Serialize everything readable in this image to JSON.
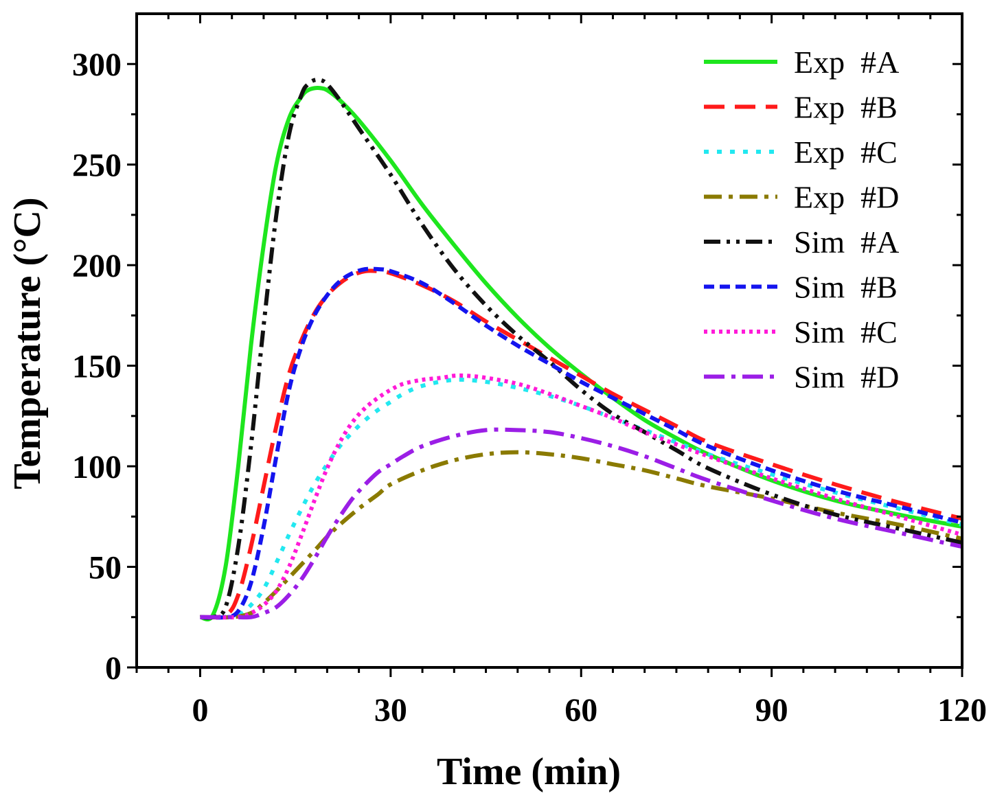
{
  "chart_data": {
    "type": "line",
    "title": "",
    "xlabel": "Time (min)",
    "ylabel": "Temperature (°C)",
    "xlim": [
      -10,
      120
    ],
    "ylim": [
      0,
      325
    ],
    "xticks": [
      0,
      30,
      60,
      90,
      120
    ],
    "yticks": [
      0,
      50,
      100,
      150,
      200,
      250,
      300
    ],
    "legend_position": "top-right",
    "series": [
      {
        "name": "Exp  #A",
        "color": "#1ee61e",
        "dash": "solid",
        "x": [
          0,
          2,
          4,
          6,
          8,
          10,
          12,
          14,
          16,
          17,
          18,
          19,
          20,
          22,
          25,
          30,
          35,
          40,
          45,
          50,
          55,
          60,
          65,
          70,
          75,
          80,
          90,
          100,
          110,
          120
        ],
        "y": [
          25,
          26,
          50,
          100,
          160,
          210,
          250,
          273,
          284,
          287,
          288,
          288,
          287,
          282,
          272,
          252,
          230,
          210,
          191,
          174,
          159,
          146,
          134,
          123,
          114,
          106,
          93,
          83,
          76,
          70
        ]
      },
      {
        "name": "Exp  #B",
        "color": "#ff1a1a",
        "dash": "30 15",
        "x": [
          0,
          4,
          6,
          8,
          10,
          12,
          14,
          16,
          18,
          20,
          22,
          24,
          26,
          28,
          30,
          35,
          40,
          45,
          50,
          55,
          60,
          65,
          70,
          75,
          80,
          90,
          100,
          110,
          120
        ],
        "y": [
          25,
          26,
          36,
          60,
          90,
          120,
          146,
          163,
          176,
          185,
          191,
          195,
          197,
          197,
          196,
          190,
          182,
          172,
          163,
          154,
          145,
          136,
          128,
          120,
          112,
          101,
          91,
          82,
          74
        ]
      },
      {
        "name": "Exp  #C",
        "color": "#22e8f0",
        "dash": "7 12",
        "x": [
          0,
          4,
          6,
          8,
          10,
          12,
          14,
          16,
          18,
          20,
          22,
          24,
          26,
          28,
          30,
          32,
          35,
          40,
          45,
          50,
          55,
          60,
          65,
          70,
          80,
          90,
          100,
          110,
          120
        ],
        "y": [
          25,
          25,
          26,
          31,
          39,
          52,
          66,
          79,
          91,
          101,
          110,
          117,
          123,
          128,
          132,
          136,
          140,
          143,
          142,
          139,
          135,
          130,
          124,
          118,
          106,
          96,
          87,
          79,
          71
        ]
      },
      {
        "name": "Exp  #D",
        "color": "#8a7a00",
        "dash": "26 10 6 10",
        "x": [
          0,
          5,
          8,
          10,
          12,
          15,
          18,
          20,
          22,
          25,
          28,
          30,
          35,
          40,
          45,
          50,
          55,
          60,
          65,
          70,
          75,
          80,
          90,
          100,
          110,
          120
        ],
        "y": [
          25,
          25,
          27,
          32,
          38,
          48,
          58,
          65,
          71,
          79,
          86,
          91,
          98,
          103,
          106,
          107,
          106,
          104,
          101,
          98,
          94,
          90,
          84,
          77,
          71,
          64
        ]
      },
      {
        "name": "Sim  #A",
        "color": "#111111",
        "dash": "24 9 5 9 5 9",
        "x": [
          0,
          2,
          4,
          6,
          8,
          10,
          12,
          14,
          16,
          17,
          18,
          19,
          20,
          22,
          25,
          30,
          35,
          40,
          45,
          50,
          55,
          60,
          65,
          70,
          75,
          80,
          90,
          100,
          110,
          120
        ],
        "y": [
          25,
          25,
          30,
          60,
          110,
          170,
          225,
          265,
          285,
          290,
          292,
          292,
          290,
          282,
          268,
          245,
          220,
          198,
          180,
          165,
          152,
          138,
          126,
          117,
          108,
          99,
          86,
          76,
          69,
          62
        ]
      },
      {
        "name": "Sim  #B",
        "color": "#1414ee",
        "dash": "15 8",
        "x": [
          0,
          4,
          6,
          8,
          10,
          12,
          14,
          16,
          18,
          20,
          22,
          24,
          26,
          28,
          30,
          35,
          40,
          45,
          50,
          55,
          60,
          65,
          70,
          75,
          80,
          90,
          100,
          110,
          120
        ],
        "y": [
          25,
          25,
          28,
          42,
          70,
          105,
          138,
          160,
          175,
          185,
          192,
          196,
          198,
          198,
          197,
          191,
          181,
          170,
          160,
          151,
          142,
          134,
          126,
          118,
          110,
          98,
          88,
          80,
          72
        ]
      },
      {
        "name": "Sim  #C",
        "color": "#ff1ad8",
        "dash": "5 6",
        "x": [
          0,
          6,
          8,
          10,
          12,
          14,
          16,
          18,
          20,
          22,
          24,
          26,
          28,
          30,
          32,
          35,
          38,
          40,
          42,
          45,
          50,
          55,
          60,
          65,
          70,
          80,
          90,
          100,
          110,
          120
        ],
        "y": [
          25,
          25,
          27,
          31,
          38,
          50,
          66,
          83,
          99,
          112,
          122,
          129,
          134,
          138,
          141,
          143,
          144,
          145,
          145,
          144,
          141,
          136,
          130,
          124,
          117,
          105,
          94,
          84,
          75,
          66
        ]
      },
      {
        "name": "Sim  #D",
        "color": "#9b1ee6",
        "dash": "30 10 6 10",
        "x": [
          0,
          5,
          8,
          10,
          12,
          14,
          16,
          18,
          20,
          22,
          24,
          26,
          28,
          30,
          32,
          35,
          40,
          45,
          50,
          55,
          60,
          65,
          70,
          75,
          80,
          90,
          100,
          110,
          120
        ],
        "y": [
          25,
          25,
          25,
          27,
          30,
          36,
          44,
          54,
          65,
          75,
          84,
          91,
          97,
          101,
          105,
          110,
          115,
          118,
          118,
          117,
          114,
          110,
          105,
          99,
          93,
          83,
          74,
          67,
          60
        ]
      }
    ]
  }
}
